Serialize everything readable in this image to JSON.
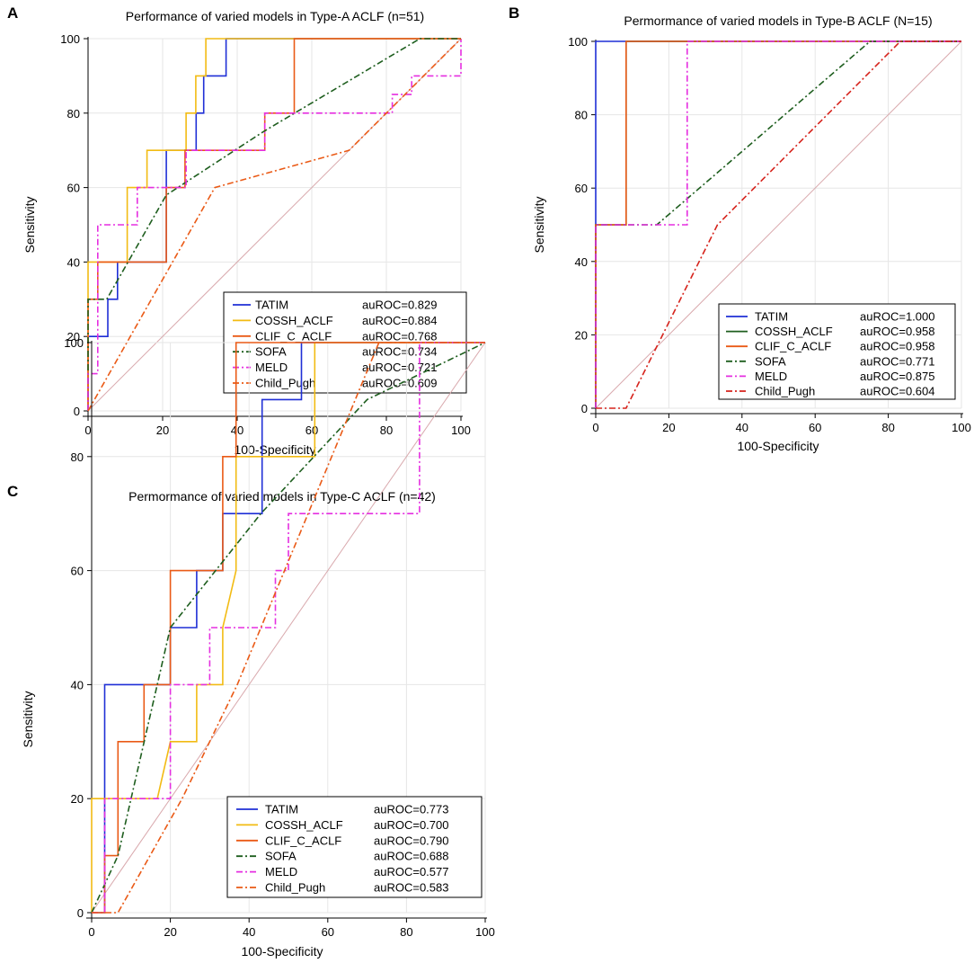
{
  "chart_data": [
    {
      "panel_label": "A",
      "type": "line",
      "title": "Performance of varied models in Type-A ACLF (n=51)",
      "xlabel": "100-Specificity",
      "ylabel": "Sensitivity",
      "xlim": [
        0,
        100
      ],
      "ylim": [
        0,
        100
      ],
      "xticks": [
        "0",
        "20",
        "40",
        "60",
        "80",
        "100"
      ],
      "yticks": [
        "0",
        "20",
        "40",
        "60",
        "80",
        "100"
      ],
      "grid": true,
      "legend_position": "bottom-right",
      "series": [
        {
          "name": "TATIM",
          "auc": "auROC=0.829",
          "color": "#1f2fd6",
          "dash": "",
          "x": [
            0,
            0,
            2.6,
            2.6,
            5.3,
            5.3,
            7.9,
            7.9,
            21,
            21,
            29,
            29,
            31,
            31,
            37,
            37,
            100
          ],
          "y": [
            0,
            20,
            20,
            20,
            20,
            30,
            30,
            40,
            40,
            70,
            70,
            80,
            80,
            90,
            90,
            100,
            100
          ]
        },
        {
          "name": "COSSH_ACLF",
          "auc": "auROC=0.884",
          "color": "#f2bb13",
          "dash": "",
          "x": [
            0,
            0,
            2.6,
            2.6,
            10.5,
            10.5,
            15.8,
            15.8,
            26.3,
            26.3,
            28.9,
            28.9,
            31.6,
            31.6,
            100
          ],
          "y": [
            0,
            40,
            40,
            40,
            40,
            60,
            60,
            70,
            70,
            80,
            80,
            90,
            90,
            100,
            100
          ]
        },
        {
          "name": "CLIF_C_ACLF",
          "auc": "auROC=0.768",
          "color": "#ea5a16",
          "dash": "",
          "x": [
            0,
            0,
            2.6,
            2.6,
            21,
            21,
            26,
            26,
            47.4,
            47.4,
            55.3,
            55.3,
            100
          ],
          "y": [
            0,
            30,
            30,
            40,
            40,
            60,
            60,
            70,
            70,
            80,
            80,
            100,
            100
          ]
        },
        {
          "name": "SOFA",
          "auc": "auROC=0.734",
          "color": "#1e5e1e",
          "dash": "7,3,2,3",
          "x": [
            0,
            0,
            5,
            21,
            47,
            89,
            100
          ],
          "y": [
            0,
            30,
            30,
            58,
            75,
            100,
            100
          ]
        },
        {
          "name": "MELD",
          "auc": "auROC=0.721",
          "color": "#e52fe0",
          "dash": "7,3,2,3",
          "x": [
            0,
            0,
            2.6,
            2.6,
            13.2,
            13.2,
            26.3,
            26.3,
            47.4,
            47.4,
            81.6,
            81.6,
            86.8,
            86.8,
            97.4,
            97.4,
            100,
            100
          ],
          "y": [
            0,
            10,
            10,
            50,
            50,
            60,
            60,
            70,
            70,
            80,
            80,
            85,
            85,
            90,
            90,
            90,
            90,
            100
          ]
        },
        {
          "name": "Child_Pugh",
          "auc": "auROC=0.609",
          "color": "#ea5a16",
          "dash": "7,3,2,3",
          "x": [
            0,
            34,
            70,
            100
          ],
          "y": [
            0,
            60,
            70,
            100
          ]
        }
      ]
    },
    {
      "panel_label": "B",
      "type": "line",
      "title": "Permormance of varied models in Type-B ACLF (N=15)",
      "xlabel": "100-Specificity",
      "ylabel": "Sensitivity",
      "xlim": [
        0,
        100
      ],
      "ylim": [
        0,
        100
      ],
      "xticks": [
        "0",
        "20",
        "40",
        "60",
        "80",
        "100"
      ],
      "yticks": [
        "0",
        "20",
        "40",
        "60",
        "80",
        "100"
      ],
      "grid": true,
      "legend_position": "bottom-right",
      "series": [
        {
          "name": "TATIM",
          "auc": "auROC=1.000",
          "color": "#1f2fd6",
          "dash": "",
          "x": [
            0,
            0,
            100
          ],
          "y": [
            0,
            100,
            100
          ]
        },
        {
          "name": "COSSH_ACLF",
          "auc": "auROC=0.958",
          "color": "#1e5e1e",
          "dash": "",
          "x": [
            0,
            0,
            8.3,
            8.3,
            100
          ],
          "y": [
            0,
            50,
            50,
            100,
            100
          ]
        },
        {
          "name": "CLIF_C_ACLF",
          "auc": "auROC=0.958",
          "color": "#ea5a16",
          "dash": "",
          "x": [
            0,
            0,
            8.3,
            8.3,
            100
          ],
          "y": [
            0,
            50,
            50,
            100,
            100
          ]
        },
        {
          "name": "SOFA",
          "auc": "auROC=0.771",
          "color": "#1e5e1e",
          "dash": "7,3,2,3",
          "x": [
            0,
            0,
            16.7,
            75,
            100
          ],
          "y": [
            0,
            50,
            50,
            100,
            100
          ]
        },
        {
          "name": "MELD",
          "auc": "auROC=0.875",
          "color": "#e52fe0",
          "dash": "7,3,2,3",
          "x": [
            0,
            0,
            25,
            25,
            100
          ],
          "y": [
            0,
            50,
            50,
            100,
            100
          ]
        },
        {
          "name": "Child_Pugh",
          "auc": "auROC=0.604",
          "color": "#d6231c",
          "dash": "7,3,2,3",
          "x": [
            0,
            8.3,
            33.3,
            83.3,
            100
          ],
          "y": [
            0,
            0,
            50,
            100,
            100
          ]
        }
      ]
    },
    {
      "panel_label": "C",
      "type": "line",
      "title": "Permormance of varied models in Type-C ACLF (n=42)",
      "xlabel": "100-Specificity",
      "ylabel": "Sensitivity",
      "xlim": [
        0,
        100
      ],
      "ylim": [
        0,
        100
      ],
      "xticks": [
        "0",
        "20",
        "40",
        "60",
        "80",
        "100"
      ],
      "yticks": [
        "0",
        "20",
        "40",
        "60",
        "80",
        "100"
      ],
      "grid": true,
      "legend_position": "bottom-right",
      "series": [
        {
          "name": "TATIM",
          "auc": "auROC=0.773",
          "color": "#1f2fd6",
          "dash": "",
          "x": [
            0,
            3.3,
            3.3,
            13.3,
            13.3,
            20,
            20,
            26.7,
            26.7,
            33.3,
            33.3,
            43.3,
            43.3,
            53.3,
            53.3,
            100
          ],
          "y": [
            0,
            0,
            40,
            40,
            40,
            40,
            50,
            50,
            60,
            60,
            70,
            70,
            90,
            90,
            100,
            100
          ]
        },
        {
          "name": "COSSH_ACLF",
          "auc": "auROC=0.700",
          "color": "#f2bb13",
          "dash": "",
          "x": [
            0,
            0,
            3.3,
            3.3,
            16.7,
            20,
            20,
            26.7,
            26.7,
            33.3,
            33.3,
            36.7,
            36.7,
            56.7,
            56.7,
            100
          ],
          "y": [
            0,
            20,
            20,
            20,
            20,
            30,
            30,
            30,
            40,
            40,
            50,
            60,
            80,
            80,
            100,
            100
          ]
        },
        {
          "name": "CLIF_C_ACLF",
          "auc": "auROC=0.790",
          "color": "#ea5a16",
          "dash": "",
          "x": [
            0,
            3.3,
            3.3,
            6.7,
            6.7,
            13.3,
            13.3,
            20,
            20,
            33.3,
            33.3,
            36.7,
            36.7,
            100
          ],
          "y": [
            0,
            0,
            10,
            10,
            30,
            30,
            40,
            40,
            60,
            60,
            80,
            80,
            100,
            100
          ]
        },
        {
          "name": "SOFA",
          "auc": "auROC=0.688",
          "color": "#1e5e1e",
          "dash": "7,3,2,3",
          "x": [
            0,
            6.7,
            20,
            43,
            70,
            100
          ],
          "y": [
            0,
            10,
            50,
            70,
            90,
            100
          ]
        },
        {
          "name": "MELD",
          "auc": "auROC=0.577",
          "color": "#e52fe0",
          "dash": "7,3,2,3",
          "x": [
            0,
            3.3,
            3.3,
            20,
            20,
            30,
            30,
            46.7,
            46.7,
            50,
            50,
            83.3,
            83.3,
            100
          ],
          "y": [
            0,
            0,
            20,
            20,
            40,
            40,
            50,
            50,
            60,
            60,
            70,
            70,
            100,
            100
          ]
        },
        {
          "name": "Child_Pugh",
          "auc": "auROC=0.583",
          "color": "#ea5a16",
          "dash": "7,3,2,3",
          "x": [
            0,
            6.7,
            23,
            37,
            73,
            100
          ],
          "y": [
            0,
            0,
            20,
            40,
            100,
            100
          ]
        }
      ]
    }
  ]
}
